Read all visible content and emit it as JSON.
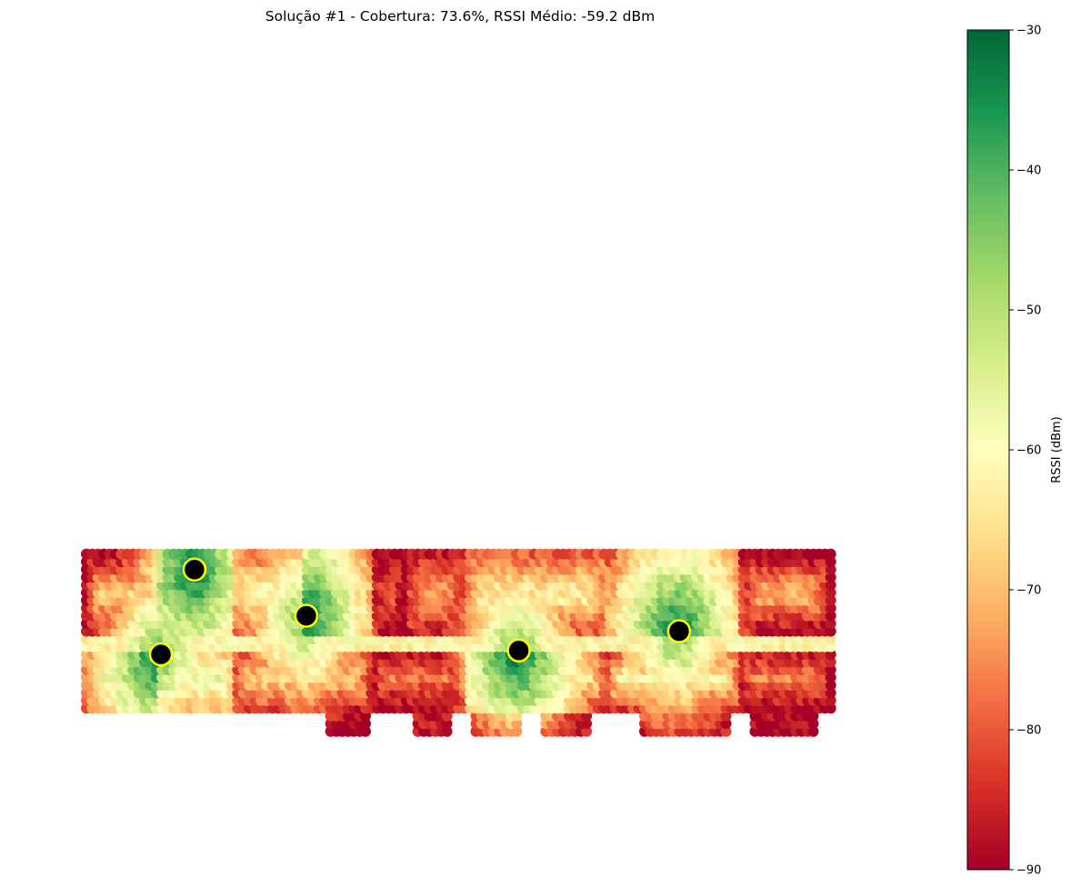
{
  "chart_data": {
    "type": "heatmap",
    "title": "Solução #1 - Cobertura: 73.6%, RSSI Médio: -59.2 dBm",
    "xlabel": "",
    "ylabel": "",
    "axes_visible": false,
    "colorbar": {
      "label": "RSSI (dBm)",
      "colormap": "RdYlGn",
      "vmin": -90,
      "vmax": -30,
      "ticks": [
        -30,
        -40,
        -50,
        -60,
        -70,
        -80,
        -90
      ],
      "tick_labels": [
        "−30",
        "−40",
        "−50",
        "−60",
        "−70",
        "−80",
        "−90"
      ],
      "placement": "right"
    },
    "access_points": [
      {
        "x": 14.5,
        "y": 21.0,
        "color": "#000000",
        "edge_color": "#ffff00"
      },
      {
        "x": 29.5,
        "y": 18.0,
        "color": "#000000",
        "edge_color": "#ffff00"
      },
      {
        "x": 10.0,
        "y": 15.5,
        "color": "#000000",
        "edge_color": "#ffff00"
      },
      {
        "x": 58.0,
        "y": 15.75,
        "color": "#000000",
        "edge_color": "#ffff00"
      },
      {
        "x": 79.5,
        "y": 17.0,
        "color": "#000000",
        "edge_color": "#ffff00"
      }
    ],
    "floor_regions": [
      {
        "x0": 0,
        "x1": 100,
        "y0": 12,
        "y1": 22
      },
      {
        "x0": 32,
        "x1": 38,
        "y0": 10.5,
        "y1": 12
      },
      {
        "x0": 44,
        "x1": 49,
        "y0": 10.5,
        "y1": 12
      },
      {
        "x0": 51.5,
        "x1": 58,
        "y0": 10.5,
        "y1": 12
      },
      {
        "x0": 61,
        "x1": 67.5,
        "y0": 10.5,
        "y1": 12
      },
      {
        "x0": 74.5,
        "x1": 86,
        "y0": 10.5,
        "y1": 12
      },
      {
        "x0": 89.5,
        "x1": 97.5,
        "y0": 10.5,
        "y1": 12
      }
    ],
    "rooms": [
      {
        "x0": 0,
        "x1": 10,
        "y0": 17,
        "y1": 22,
        "edge": -89,
        "base": -68
      },
      {
        "x0": 10,
        "x1": 20,
        "y0": 17,
        "y1": 22,
        "edge": -80,
        "base": -60
      },
      {
        "x0": 20,
        "x1": 29,
        "y0": 17,
        "y1": 22,
        "edge": -78,
        "base": -62
      },
      {
        "x0": 29,
        "x1": 38.5,
        "y0": 17,
        "y1": 22,
        "edge": -85,
        "base": -62
      },
      {
        "x0": 38.5,
        "x1": 43,
        "y0": 17,
        "y1": 22,
        "edge": -90,
        "base": -80
      },
      {
        "x0": 43,
        "x1": 51,
        "y0": 17,
        "y1": 22,
        "edge": -86,
        "base": -74
      },
      {
        "x0": 51,
        "x1": 70,
        "y0": 17,
        "y1": 22,
        "edge": -80,
        "base": -64
      },
      {
        "x0": 70,
        "x1": 88,
        "y0": 17,
        "y1": 22,
        "edge": -82,
        "base": -62
      },
      {
        "x0": 88,
        "x1": 100,
        "y0": 17,
        "y1": 22,
        "edge": -90,
        "base": -72
      },
      {
        "x0": 0,
        "x1": 100,
        "y0": 16,
        "y1": 17,
        "edge": -62,
        "base": -58
      },
      {
        "x0": 0,
        "x1": 10,
        "y0": 12,
        "y1": 16,
        "edge": -84,
        "base": -56
      },
      {
        "x0": 10,
        "x1": 20,
        "y0": 12,
        "y1": 16,
        "edge": -70,
        "base": -56
      },
      {
        "x0": 20,
        "x1": 29,
        "y0": 12,
        "y1": 16,
        "edge": -82,
        "base": -66
      },
      {
        "x0": 29,
        "x1": 38.5,
        "y0": 12,
        "y1": 16,
        "edge": -86,
        "base": -66
      },
      {
        "x0": 38.5,
        "x1": 51,
        "y0": 12,
        "y1": 16,
        "edge": -90,
        "base": -76
      },
      {
        "x0": 51,
        "x1": 70,
        "y0": 12,
        "y1": 16,
        "edge": -84,
        "base": -62
      },
      {
        "x0": 70,
        "x1": 88,
        "y0": 12,
        "y1": 16,
        "edge": -84,
        "base": -58
      },
      {
        "x0": 88,
        "x1": 100,
        "y0": 12,
        "y1": 16,
        "edge": -90,
        "base": -74
      },
      {
        "x0": 32,
        "x1": 38,
        "y0": 10.5,
        "y1": 12,
        "edge": -90,
        "base": -88
      },
      {
        "x0": 44,
        "x1": 49,
        "y0": 10.5,
        "y1": 12,
        "edge": -88,
        "base": -80
      },
      {
        "x0": 51.5,
        "x1": 58,
        "y0": 10.5,
        "y1": 12,
        "edge": -88,
        "base": -58
      },
      {
        "x0": 61,
        "x1": 67.5,
        "y0": 10.5,
        "y1": 12,
        "edge": -86,
        "base": -78
      },
      {
        "x0": 74.5,
        "x1": 86,
        "y0": 10.5,
        "y1": 12,
        "edge": -86,
        "base": -72
      },
      {
        "x0": 89.5,
        "x1": 97.5,
        "y0": 10.5,
        "y1": 12,
        "edge": -90,
        "base": -84
      }
    ],
    "xlim": [
      0,
      100
    ],
    "ylim": [
      0,
      56
    ]
  }
}
